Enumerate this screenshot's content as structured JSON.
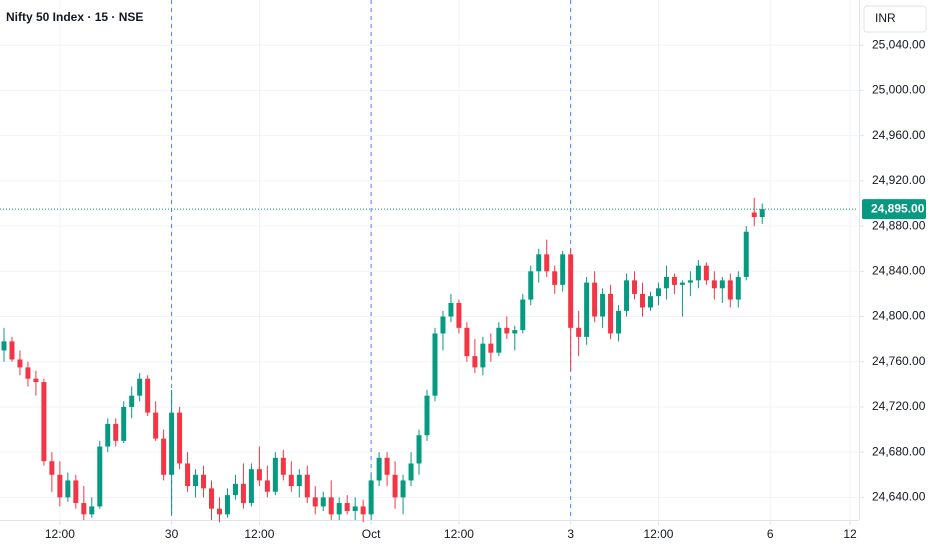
{
  "chart_data": {
    "type": "candlestick",
    "title": "Nifty 50 Index · 15 · NSE",
    "currency": "INR",
    "up_color": "#089981",
    "down_color": "#f23645",
    "grid": true,
    "x": [
      4,
      5,
      6,
      7,
      8,
      9,
      10,
      11,
      12,
      13,
      14,
      15,
      16,
      17,
      18,
      19,
      20,
      21,
      22,
      23,
      24,
      25,
      26,
      27,
      28,
      29,
      30,
      31,
      32,
      33,
      34,
      35,
      36,
      37,
      38,
      39,
      40,
      41,
      42,
      43,
      44,
      45,
      46,
      47,
      48,
      49,
      50,
      51,
      52,
      53,
      54,
      55,
      56,
      57,
      58,
      59,
      60,
      61,
      62,
      63,
      64,
      65,
      66,
      67,
      68,
      69,
      70,
      71,
      72,
      73,
      74,
      75,
      76,
      77,
      78,
      79,
      80,
      81,
      82,
      83,
      84,
      85,
      86,
      87,
      88,
      89,
      90,
      91,
      92,
      93,
      94,
      95,
      96,
      97,
      98,
      99
    ],
    "open": [
      24770,
      24778,
      24762,
      24755,
      24745,
      24742,
      24672,
      24660,
      24640,
      24655,
      24635,
      24625,
      24632,
      24685,
      24705,
      24690,
      24720,
      24730,
      24745,
      24715,
      24692,
      24660,
      24715,
      24670,
      24650,
      24660,
      24648,
      24630,
      24625,
      24642,
      24652,
      24635,
      24665,
      24655,
      24645,
      24675,
      24660,
      24650,
      24660,
      24640,
      24632,
      24640,
      24625,
      24635,
      24628,
      24632,
      24625,
      24655,
      24675,
      24660,
      24640,
      24655,
      24670,
      24695,
      24730,
      24785,
      24800,
      24812,
      24790,
      24765,
      24755,
      24776,
      24768,
      24790,
      24785,
      24788,
      24815,
      24840,
      24855,
      24840,
      24828,
      24855,
      24790,
      24782,
      24830,
      24800,
      24820,
      24785,
      24805,
      24832,
      24820,
      24808,
      24818,
      24825,
      24835,
      24828,
      24830,
      24832,
      24845,
      24832,
      24825,
      24832,
      24815,
      24835,
      24892,
      24888
    ],
    "high": [
      24790,
      24782,
      24770,
      24760,
      24752,
      24745,
      24680,
      24672,
      24662,
      24660,
      24650,
      24640,
      24690,
      24710,
      24710,
      24725,
      24738,
      24750,
      24748,
      24725,
      24700,
      24735,
      24720,
      24680,
      24665,
      24668,
      24655,
      24640,
      24648,
      24660,
      24670,
      24670,
      24685,
      24668,
      24680,
      24682,
      24672,
      24665,
      24668,
      24650,
      24645,
      24655,
      24640,
      24642,
      24640,
      24638,
      24660,
      24680,
      24680,
      24672,
      24660,
      24680,
      24700,
      24735,
      24790,
      24805,
      24820,
      24815,
      24795,
      24780,
      24782,
      24785,
      24795,
      24800,
      24792,
      24820,
      24845,
      24860,
      24868,
      24845,
      24858,
      24860,
      24805,
      24835,
      24840,
      24825,
      24828,
      24810,
      24838,
      24840,
      24830,
      24822,
      24830,
      24845,
      24838,
      24832,
      24840,
      24850,
      24848,
      24840,
      24835,
      24838,
      24840,
      24880,
      24905,
      24900
    ],
    "low": [
      24760,
      24760,
      24748,
      24738,
      24730,
      24668,
      24645,
      24632,
      24636,
      24630,
      24620,
      24622,
      24630,
      24680,
      24685,
      24688,
      24710,
      24725,
      24712,
      24690,
      24655,
      24625,
      24665,
      24645,
      24640,
      24640,
      24620,
      24618,
      24622,
      24638,
      24630,
      24632,
      24650,
      24640,
      24642,
      24655,
      24645,
      24640,
      24635,
      24625,
      24628,
      24620,
      24620,
      24625,
      24620,
      24618,
      24620,
      24650,
      24650,
      24630,
      24625,
      24650,
      24660,
      24690,
      24725,
      24770,
      24795,
      24785,
      24760,
      24750,
      24748,
      24760,
      24765,
      24780,
      24770,
      24785,
      24810,
      24830,
      24835,
      24820,
      24822,
      24752,
      24765,
      24775,
      24795,
      24790,
      24780,
      24778,
      24800,
      24815,
      24800,
      24805,
      24810,
      24815,
      24820,
      24800,
      24818,
      24825,
      24828,
      24815,
      24812,
      24808,
      24808,
      24832,
      24880,
      24882
    ],
    "close": [
      24778,
      24762,
      24755,
      24745,
      24742,
      24672,
      24660,
      24640,
      24655,
      24635,
      24625,
      24632,
      24685,
      24705,
      24690,
      24720,
      24730,
      24745,
      24715,
      24692,
      24660,
      24715,
      24670,
      24650,
      24660,
      24648,
      24630,
      24625,
      24642,
      24652,
      24635,
      24665,
      24655,
      24645,
      24675,
      24660,
      24650,
      24660,
      24640,
      24632,
      24640,
      24625,
      24635,
      24628,
      24632,
      24625,
      24655,
      24675,
      24660,
      24640,
      24655,
      24670,
      24695,
      24730,
      24785,
      24800,
      24812,
      24790,
      24765,
      24755,
      24776,
      24768,
      24790,
      24785,
      24788,
      24815,
      24840,
      24855,
      24840,
      24828,
      24855,
      24790,
      24782,
      24830,
      24800,
      24820,
      24785,
      24805,
      24832,
      24820,
      24808,
      24818,
      24825,
      24835,
      24828,
      24830,
      24832,
      24845,
      24832,
      24825,
      24832,
      24815,
      24835,
      24875,
      24888,
      24895
    ],
    "session_breaks": [
      25,
      50,
      75
    ],
    "xlim": [
      3.5,
      111
    ],
    "xticks": [
      {
        "value": 11,
        "label": "12:00"
      },
      {
        "value": 25,
        "label": "30"
      },
      {
        "value": 36,
        "label": "12:00"
      },
      {
        "value": 50,
        "label": "Oct"
      },
      {
        "value": 61,
        "label": "12:00"
      },
      {
        "value": 75,
        "label": "3"
      },
      {
        "value": 86,
        "label": "12:00"
      },
      {
        "value": 100,
        "label": "6"
      },
      {
        "value": 110,
        "label": "12"
      }
    ],
    "ylim": [
      24620,
      25080
    ],
    "yticks": [
      {
        "value": 24640,
        "label": "24,640.00"
      },
      {
        "value": 24680,
        "label": "24,680.00"
      },
      {
        "value": 24720,
        "label": "24,720.00"
      },
      {
        "value": 24760,
        "label": "24,760.00"
      },
      {
        "value": 24800,
        "label": "24,800.00"
      },
      {
        "value": 24840,
        "label": "24,840.00"
      },
      {
        "value": 24880,
        "label": "24,880.00"
      },
      {
        "value": 24920,
        "label": "24,920.00"
      },
      {
        "value": 24960,
        "label": "24,960.00"
      },
      {
        "value": 25000,
        "label": "25,000.00"
      },
      {
        "value": 25040,
        "label": "25,040.00"
      }
    ],
    "last_price": {
      "value": 24895,
      "label": "24,895.00"
    }
  }
}
